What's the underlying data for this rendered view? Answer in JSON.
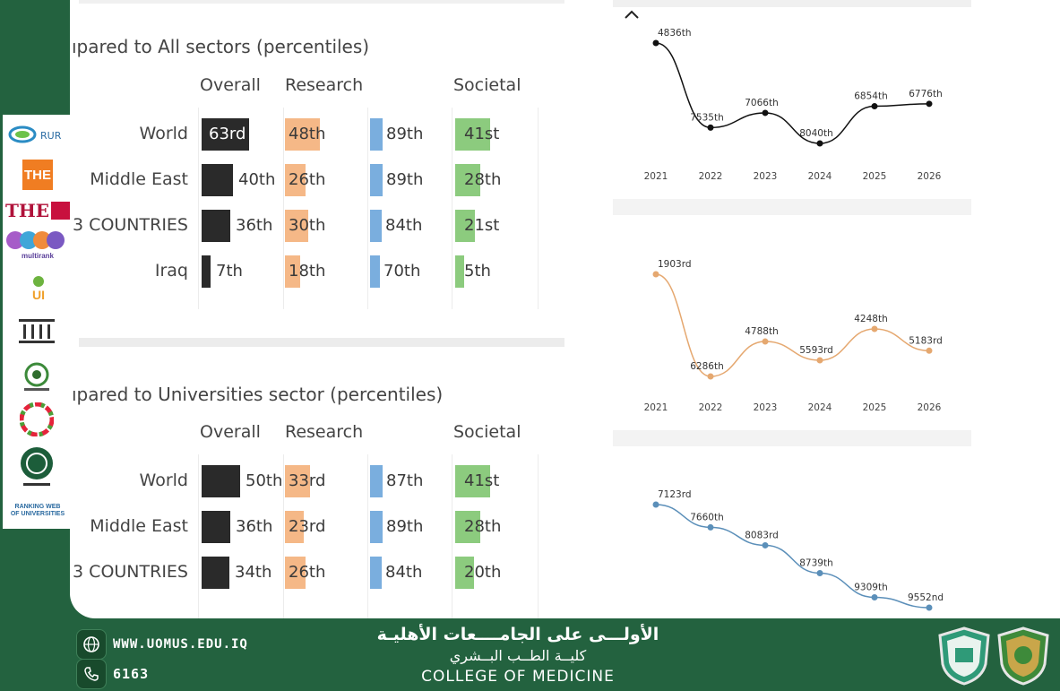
{
  "tables": [
    {
      "title": "ıpared to All sectors (percentiles)",
      "columns": [
        "Overall",
        "Research",
        "Societal"
      ],
      "rows": [
        {
          "label": "World",
          "overall": "63rd",
          "research": "48th",
          "mid": "89th",
          "societal": "41st"
        },
        {
          "label": "Middle East",
          "overall": "40th",
          "research": "26th",
          "mid": "89th",
          "societal": "28th"
        },
        {
          "label": "3 COUNTRIES",
          "overall": "36th",
          "research": "30th",
          "mid": "84th",
          "societal": "21st"
        },
        {
          "label": "Iraq",
          "overall": "7th",
          "research": "18th",
          "mid": "70th",
          "societal": "5th"
        }
      ]
    },
    {
      "title": "ıpared to Universities sector (percentiles)",
      "columns": [
        "Overall",
        "Research",
        "Societal"
      ],
      "rows": [
        {
          "label": "World",
          "overall": "50th",
          "research": "33rd",
          "mid": "87th",
          "societal": "41st"
        },
        {
          "label": "Middle East",
          "overall": "36th",
          "research": "23rd",
          "mid": "89th",
          "societal": "28th"
        },
        {
          "label": "3 COUNTRIES",
          "overall": "34th",
          "research": "26th",
          "mid": "84th",
          "societal": "20th"
        }
      ]
    }
  ],
  "collapse_icon": "chevron-up-icon",
  "chart_data": [
    {
      "type": "line",
      "x": [
        "2021",
        "2022",
        "2023",
        "2024",
        "2025",
        "2026"
      ],
      "series": [
        {
          "labels": [
            "4836th",
            "7535th",
            "7066th",
            "8040th",
            "6854th",
            "6776th"
          ],
          "values": [
            4836,
            7535,
            7066,
            8040,
            6854,
            6776
          ],
          "color": "#111111"
        }
      ]
    },
    {
      "type": "line",
      "x": [
        "2021",
        "2022",
        "2023",
        "2024",
        "2025",
        "2026"
      ],
      "series": [
        {
          "labels": [
            "1903rd",
            "6286th",
            "4788th",
            "5593rd",
            "4248th",
            "5183rd"
          ],
          "values": [
            1903,
            6286,
            4788,
            5593,
            4248,
            5183
          ],
          "color": "#e5a870"
        }
      ]
    },
    {
      "type": "line",
      "x": [
        "2021",
        "2022",
        "2023",
        "2024",
        "2025",
        "2026"
      ],
      "series": [
        {
          "labels": [
            "7123rd",
            "7660th",
            "8083rd",
            "8739th",
            "9309th",
            "9552nd"
          ],
          "values": [
            7123,
            7660,
            8083,
            8739,
            9309,
            9552
          ],
          "color": "#5b8fb9"
        }
      ]
    }
  ],
  "logos": [
    {
      "name": "rur-logo",
      "text": "RUR"
    },
    {
      "name": "the-logo",
      "text": "THE"
    },
    {
      "name": "the-impact-logo",
      "text": "THE"
    },
    {
      "name": "multirank-logo",
      "text": "multirank"
    },
    {
      "name": "greenmetric-logo",
      "text": "UI"
    },
    {
      "name": "institution-logo",
      "text": ""
    },
    {
      "name": "arab-universities-logo",
      "text": ""
    },
    {
      "name": "sdg-logo",
      "text": ""
    },
    {
      "name": "arab-engineers-logo",
      "text": ""
    },
    {
      "name": "webometrics-logo",
      "text": "RANKING WEB OF UNIVERSITIES"
    }
  ],
  "footer": {
    "website": "WWW.UOMUS.EDU.IQ",
    "phone": "6163",
    "arabic_title": "الأولـــى على الجامــــعات الأهليـة",
    "arabic_college": "كليــة الطــب البــشري",
    "college": "COLLEGE OF MEDICINE",
    "www_icon": "globe-icon",
    "phone_icon": "phone-icon"
  },
  "colors": {
    "overall": "#2a2a2a",
    "research": "#f5b887",
    "mid": "#7aaede",
    "societal": "#8ccb7e",
    "footer_bg": "#23623f"
  }
}
